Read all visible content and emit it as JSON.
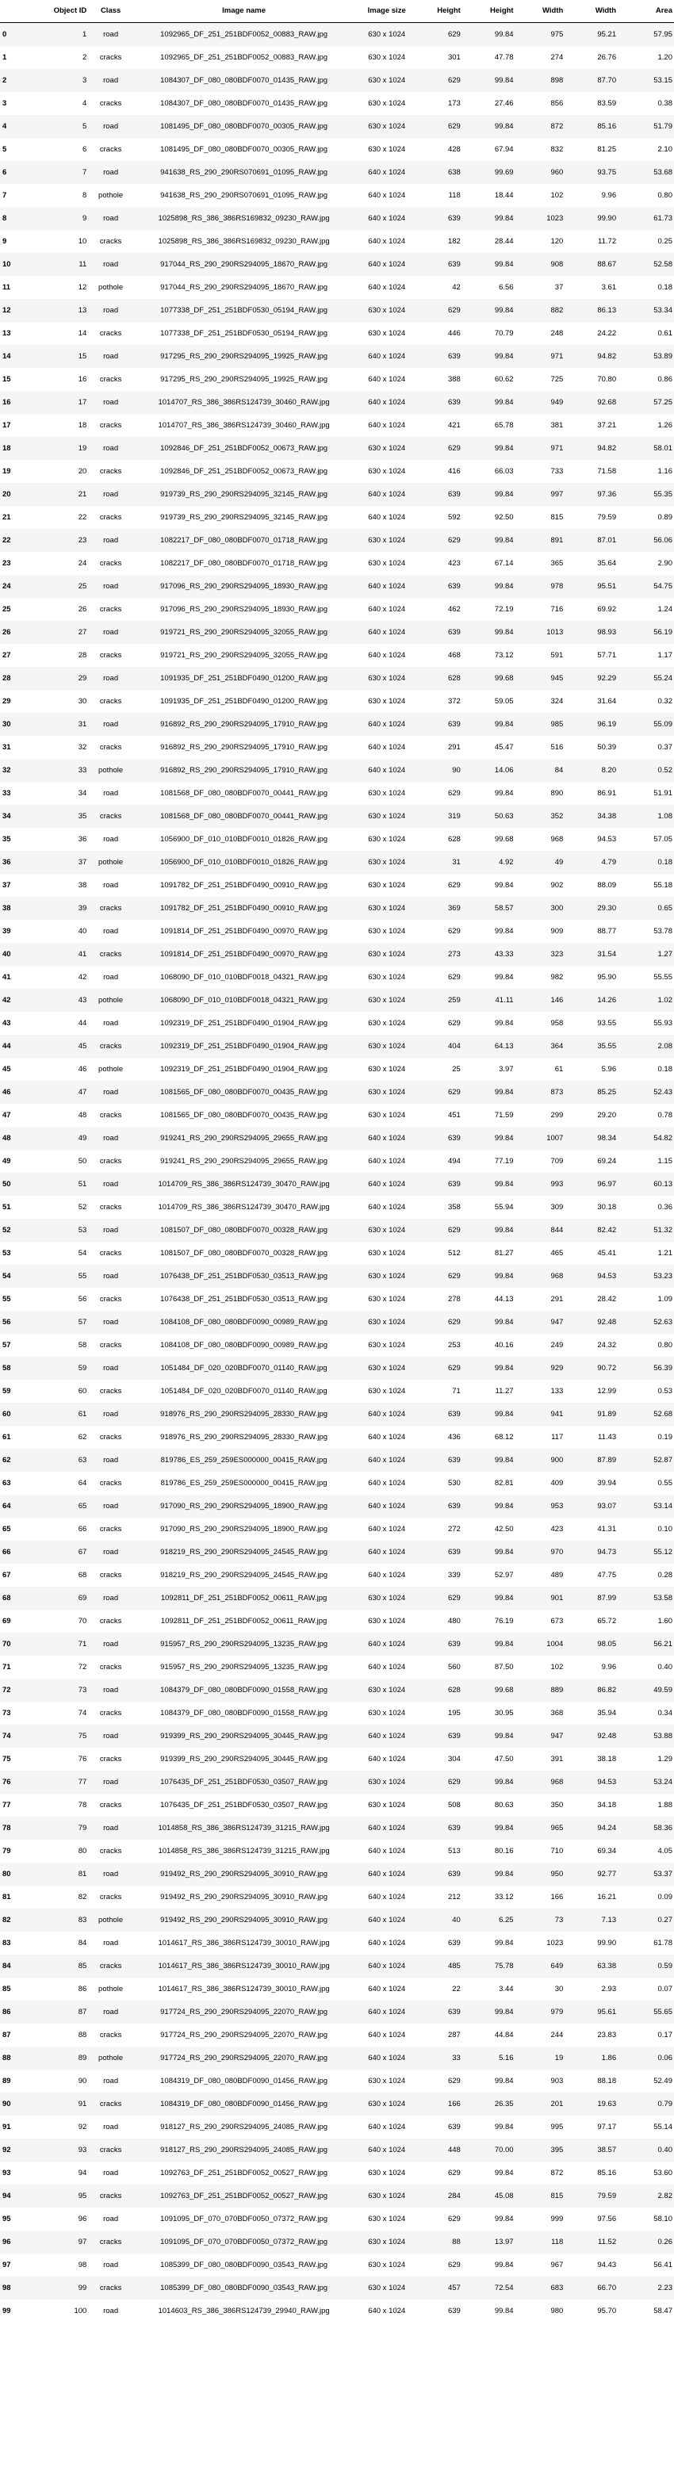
{
  "columns": [
    "",
    "Object ID",
    "Class",
    "Image name",
    "Image size",
    "Height",
    "Height",
    "Width",
    "Width",
    "Area"
  ],
  "rows": [
    [
      "0",
      "1",
      "road",
      "1092965_DF_251_251BDF0052_00883_RAW.jpg",
      "630 x 1024",
      "629",
      "99.84",
      "975",
      "95.21",
      "57.95"
    ],
    [
      "1",
      "2",
      "cracks",
      "1092965_DF_251_251BDF0052_00883_RAW.jpg",
      "630 x 1024",
      "301",
      "47.78",
      "274",
      "26.76",
      "1.20"
    ],
    [
      "2",
      "3",
      "road",
      "1084307_DF_080_080BDF0070_01435_RAW.jpg",
      "630 x 1024",
      "629",
      "99.84",
      "898",
      "87.70",
      "53.15"
    ],
    [
      "3",
      "4",
      "cracks",
      "1084307_DF_080_080BDF0070_01435_RAW.jpg",
      "630 x 1024",
      "173",
      "27.46",
      "856",
      "83.59",
      "0.38"
    ],
    [
      "4",
      "5",
      "road",
      "1081495_DF_080_080BDF0070_00305_RAW.jpg",
      "630 x 1024",
      "629",
      "99.84",
      "872",
      "85.16",
      "51.79"
    ],
    [
      "5",
      "6",
      "cracks",
      "1081495_DF_080_080BDF0070_00305_RAW.jpg",
      "630 x 1024",
      "428",
      "67.94",
      "832",
      "81.25",
      "2.10"
    ],
    [
      "6",
      "7",
      "road",
      "941638_RS_290_290RS070691_01095_RAW.jpg",
      "640 x 1024",
      "638",
      "99.69",
      "960",
      "93.75",
      "53.68"
    ],
    [
      "7",
      "8",
      "pothole",
      "941638_RS_290_290RS070691_01095_RAW.jpg",
      "640 x 1024",
      "118",
      "18.44",
      "102",
      "9.96",
      "0.80"
    ],
    [
      "8",
      "9",
      "road",
      "1025898_RS_386_386RS169832_09230_RAW.jpg",
      "640 x 1024",
      "639",
      "99.84",
      "1023",
      "99.90",
      "61.73"
    ],
    [
      "9",
      "10",
      "cracks",
      "1025898_RS_386_386RS169832_09230_RAW.jpg",
      "640 x 1024",
      "182",
      "28.44",
      "120",
      "11.72",
      "0.25"
    ],
    [
      "10",
      "11",
      "road",
      "917044_RS_290_290RS294095_18670_RAW.jpg",
      "640 x 1024",
      "639",
      "99.84",
      "908",
      "88.67",
      "52.58"
    ],
    [
      "11",
      "12",
      "pothole",
      "917044_RS_290_290RS294095_18670_RAW.jpg",
      "640 x 1024",
      "42",
      "6.56",
      "37",
      "3.61",
      "0.18"
    ],
    [
      "12",
      "13",
      "road",
      "1077338_DF_251_251BDF0530_05194_RAW.jpg",
      "630 x 1024",
      "629",
      "99.84",
      "882",
      "86.13",
      "53.34"
    ],
    [
      "13",
      "14",
      "cracks",
      "1077338_DF_251_251BDF0530_05194_RAW.jpg",
      "630 x 1024",
      "446",
      "70.79",
      "248",
      "24.22",
      "0.61"
    ],
    [
      "14",
      "15",
      "road",
      "917295_RS_290_290RS294095_19925_RAW.jpg",
      "640 x 1024",
      "639",
      "99.84",
      "971",
      "94.82",
      "53.89"
    ],
    [
      "15",
      "16",
      "cracks",
      "917295_RS_290_290RS294095_19925_RAW.jpg",
      "640 x 1024",
      "388",
      "60.62",
      "725",
      "70.80",
      "0.86"
    ],
    [
      "16",
      "17",
      "road",
      "1014707_RS_386_386RS124739_30460_RAW.jpg",
      "640 x 1024",
      "639",
      "99.84",
      "949",
      "92.68",
      "57.25"
    ],
    [
      "17",
      "18",
      "cracks",
      "1014707_RS_386_386RS124739_30460_RAW.jpg",
      "640 x 1024",
      "421",
      "65.78",
      "381",
      "37.21",
      "1.26"
    ],
    [
      "18",
      "19",
      "road",
      "1092846_DF_251_251BDF0052_00673_RAW.jpg",
      "630 x 1024",
      "629",
      "99.84",
      "971",
      "94.82",
      "58.01"
    ],
    [
      "19",
      "20",
      "cracks",
      "1092846_DF_251_251BDF0052_00673_RAW.jpg",
      "630 x 1024",
      "416",
      "66.03",
      "733",
      "71.58",
      "1.16"
    ],
    [
      "20",
      "21",
      "road",
      "919739_RS_290_290RS294095_32145_RAW.jpg",
      "640 x 1024",
      "639",
      "99.84",
      "997",
      "97.36",
      "55.35"
    ],
    [
      "21",
      "22",
      "cracks",
      "919739_RS_290_290RS294095_32145_RAW.jpg",
      "640 x 1024",
      "592",
      "92.50",
      "815",
      "79.59",
      "0.89"
    ],
    [
      "22",
      "23",
      "road",
      "1082217_DF_080_080BDF0070_01718_RAW.jpg",
      "630 x 1024",
      "629",
      "99.84",
      "891",
      "87.01",
      "56.06"
    ],
    [
      "23",
      "24",
      "cracks",
      "1082217_DF_080_080BDF0070_01718_RAW.jpg",
      "630 x 1024",
      "423",
      "67.14",
      "365",
      "35.64",
      "2.90"
    ],
    [
      "24",
      "25",
      "road",
      "917096_RS_290_290RS294095_18930_RAW.jpg",
      "640 x 1024",
      "639",
      "99.84",
      "978",
      "95.51",
      "54.75"
    ],
    [
      "25",
      "26",
      "cracks",
      "917096_RS_290_290RS294095_18930_RAW.jpg",
      "640 x 1024",
      "462",
      "72.19",
      "716",
      "69.92",
      "1.24"
    ],
    [
      "26",
      "27",
      "road",
      "919721_RS_290_290RS294095_32055_RAW.jpg",
      "640 x 1024",
      "639",
      "99.84",
      "1013",
      "98.93",
      "56.19"
    ],
    [
      "27",
      "28",
      "cracks",
      "919721_RS_290_290RS294095_32055_RAW.jpg",
      "640 x 1024",
      "468",
      "73.12",
      "591",
      "57.71",
      "1.17"
    ],
    [
      "28",
      "29",
      "road",
      "1091935_DF_251_251BDF0490_01200_RAW.jpg",
      "630 x 1024",
      "628",
      "99.68",
      "945",
      "92.29",
      "55.24"
    ],
    [
      "29",
      "30",
      "cracks",
      "1091935_DF_251_251BDF0490_01200_RAW.jpg",
      "630 x 1024",
      "372",
      "59.05",
      "324",
      "31.64",
      "0.32"
    ],
    [
      "30",
      "31",
      "road",
      "916892_RS_290_290RS294095_17910_RAW.jpg",
      "640 x 1024",
      "639",
      "99.84",
      "985",
      "96.19",
      "55.09"
    ],
    [
      "31",
      "32",
      "cracks",
      "916892_RS_290_290RS294095_17910_RAW.jpg",
      "640 x 1024",
      "291",
      "45.47",
      "516",
      "50.39",
      "0.37"
    ],
    [
      "32",
      "33",
      "pothole",
      "916892_RS_290_290RS294095_17910_RAW.jpg",
      "640 x 1024",
      "90",
      "14.06",
      "84",
      "8.20",
      "0.52"
    ],
    [
      "33",
      "34",
      "road",
      "1081568_DF_080_080BDF0070_00441_RAW.jpg",
      "630 x 1024",
      "629",
      "99.84",
      "890",
      "86.91",
      "51.91"
    ],
    [
      "34",
      "35",
      "cracks",
      "1081568_DF_080_080BDF0070_00441_RAW.jpg",
      "630 x 1024",
      "319",
      "50.63",
      "352",
      "34.38",
      "1.08"
    ],
    [
      "35",
      "36",
      "road",
      "1056900_DF_010_010BDF0010_01826_RAW.jpg",
      "630 x 1024",
      "628",
      "99.68",
      "968",
      "94.53",
      "57.05"
    ],
    [
      "36",
      "37",
      "pothole",
      "1056900_DF_010_010BDF0010_01826_RAW.jpg",
      "630 x 1024",
      "31",
      "4.92",
      "49",
      "4.79",
      "0.18"
    ],
    [
      "37",
      "38",
      "road",
      "1091782_DF_251_251BDF0490_00910_RAW.jpg",
      "630 x 1024",
      "629",
      "99.84",
      "902",
      "88.09",
      "55.18"
    ],
    [
      "38",
      "39",
      "cracks",
      "1091782_DF_251_251BDF0490_00910_RAW.jpg",
      "630 x 1024",
      "369",
      "58.57",
      "300",
      "29.30",
      "0.65"
    ],
    [
      "39",
      "40",
      "road",
      "1091814_DF_251_251BDF0490_00970_RAW.jpg",
      "630 x 1024",
      "629",
      "99.84",
      "909",
      "88.77",
      "53.78"
    ],
    [
      "40",
      "41",
      "cracks",
      "1091814_DF_251_251BDF0490_00970_RAW.jpg",
      "630 x 1024",
      "273",
      "43.33",
      "323",
      "31.54",
      "1.27"
    ],
    [
      "41",
      "42",
      "road",
      "1068090_DF_010_010BDF0018_04321_RAW.jpg",
      "630 x 1024",
      "629",
      "99.84",
      "982",
      "95.90",
      "55.55"
    ],
    [
      "42",
      "43",
      "pothole",
      "1068090_DF_010_010BDF0018_04321_RAW.jpg",
      "630 x 1024",
      "259",
      "41.11",
      "146",
      "14.26",
      "1.02"
    ],
    [
      "43",
      "44",
      "road",
      "1092319_DF_251_251BDF0490_01904_RAW.jpg",
      "630 x 1024",
      "629",
      "99.84",
      "958",
      "93.55",
      "55.93"
    ],
    [
      "44",
      "45",
      "cracks",
      "1092319_DF_251_251BDF0490_01904_RAW.jpg",
      "630 x 1024",
      "404",
      "64.13",
      "364",
      "35.55",
      "2.08"
    ],
    [
      "45",
      "46",
      "pothole",
      "1092319_DF_251_251BDF0490_01904_RAW.jpg",
      "630 x 1024",
      "25",
      "3.97",
      "61",
      "5.96",
      "0.18"
    ],
    [
      "46",
      "47",
      "road",
      "1081565_DF_080_080BDF0070_00435_RAW.jpg",
      "630 x 1024",
      "629",
      "99.84",
      "873",
      "85.25",
      "52.43"
    ],
    [
      "47",
      "48",
      "cracks",
      "1081565_DF_080_080BDF0070_00435_RAW.jpg",
      "630 x 1024",
      "451",
      "71.59",
      "299",
      "29.20",
      "0.78"
    ],
    [
      "48",
      "49",
      "road",
      "919241_RS_290_290RS294095_29655_RAW.jpg",
      "640 x 1024",
      "639",
      "99.84",
      "1007",
      "98.34",
      "54.82"
    ],
    [
      "49",
      "50",
      "cracks",
      "919241_RS_290_290RS294095_29655_RAW.jpg",
      "640 x 1024",
      "494",
      "77.19",
      "709",
      "69.24",
      "1.15"
    ],
    [
      "50",
      "51",
      "road",
      "1014709_RS_386_386RS124739_30470_RAW.jpg",
      "640 x 1024",
      "639",
      "99.84",
      "993",
      "96.97",
      "60.13"
    ],
    [
      "51",
      "52",
      "cracks",
      "1014709_RS_386_386RS124739_30470_RAW.jpg",
      "640 x 1024",
      "358",
      "55.94",
      "309",
      "30.18",
      "0.36"
    ],
    [
      "52",
      "53",
      "road",
      "1081507_DF_080_080BDF0070_00328_RAW.jpg",
      "630 x 1024",
      "629",
      "99.84",
      "844",
      "82.42",
      "51.32"
    ],
    [
      "53",
      "54",
      "cracks",
      "1081507_DF_080_080BDF0070_00328_RAW.jpg",
      "630 x 1024",
      "512",
      "81.27",
      "465",
      "45.41",
      "1.21"
    ],
    [
      "54",
      "55",
      "road",
      "1076438_DF_251_251BDF0530_03513_RAW.jpg",
      "630 x 1024",
      "629",
      "99.84",
      "968",
      "94.53",
      "53.23"
    ],
    [
      "55",
      "56",
      "cracks",
      "1076438_DF_251_251BDF0530_03513_RAW.jpg",
      "630 x 1024",
      "278",
      "44.13",
      "291",
      "28.42",
      "1.09"
    ],
    [
      "56",
      "57",
      "road",
      "1084108_DF_080_080BDF0090_00989_RAW.jpg",
      "630 x 1024",
      "629",
      "99.84",
      "947",
      "92.48",
      "52.63"
    ],
    [
      "57",
      "58",
      "cracks",
      "1084108_DF_080_080BDF0090_00989_RAW.jpg",
      "630 x 1024",
      "253",
      "40.16",
      "249",
      "24.32",
      "0.80"
    ],
    [
      "58",
      "59",
      "road",
      "1051484_DF_020_020BDF0070_01140_RAW.jpg",
      "630 x 1024",
      "629",
      "99.84",
      "929",
      "90.72",
      "56.39"
    ],
    [
      "59",
      "60",
      "cracks",
      "1051484_DF_020_020BDF0070_01140_RAW.jpg",
      "630 x 1024",
      "71",
      "11.27",
      "133",
      "12.99",
      "0.53"
    ],
    [
      "60",
      "61",
      "road",
      "918976_RS_290_290RS294095_28330_RAW.jpg",
      "640 x 1024",
      "639",
      "99.84",
      "941",
      "91.89",
      "52.68"
    ],
    [
      "61",
      "62",
      "cracks",
      "918976_RS_290_290RS294095_28330_RAW.jpg",
      "640 x 1024",
      "436",
      "68.12",
      "117",
      "11.43",
      "0.19"
    ],
    [
      "62",
      "63",
      "road",
      "819786_ES_259_259ES000000_00415_RAW.jpg",
      "640 x 1024",
      "639",
      "99.84",
      "900",
      "87.89",
      "52.87"
    ],
    [
      "63",
      "64",
      "cracks",
      "819786_ES_259_259ES000000_00415_RAW.jpg",
      "640 x 1024",
      "530",
      "82.81",
      "409",
      "39.94",
      "0.55"
    ],
    [
      "64",
      "65",
      "road",
      "917090_RS_290_290RS294095_18900_RAW.jpg",
      "640 x 1024",
      "639",
      "99.84",
      "953",
      "93.07",
      "53.14"
    ],
    [
      "65",
      "66",
      "cracks",
      "917090_RS_290_290RS294095_18900_RAW.jpg",
      "640 x 1024",
      "272",
      "42.50",
      "423",
      "41.31",
      "0.10"
    ],
    [
      "66",
      "67",
      "road",
      "918219_RS_290_290RS294095_24545_RAW.jpg",
      "640 x 1024",
      "639",
      "99.84",
      "970",
      "94.73",
      "55.12"
    ],
    [
      "67",
      "68",
      "cracks",
      "918219_RS_290_290RS294095_24545_RAW.jpg",
      "640 x 1024",
      "339",
      "52.97",
      "489",
      "47.75",
      "0.28"
    ],
    [
      "68",
      "69",
      "road",
      "1092811_DF_251_251BDF0052_00611_RAW.jpg",
      "630 x 1024",
      "629",
      "99.84",
      "901",
      "87.99",
      "53.58"
    ],
    [
      "69",
      "70",
      "cracks",
      "1092811_DF_251_251BDF0052_00611_RAW.jpg",
      "630 x 1024",
      "480",
      "76.19",
      "673",
      "65.72",
      "1.60"
    ],
    [
      "70",
      "71",
      "road",
      "915957_RS_290_290RS294095_13235_RAW.jpg",
      "640 x 1024",
      "639",
      "99.84",
      "1004",
      "98.05",
      "56.21"
    ],
    [
      "71",
      "72",
      "cracks",
      "915957_RS_290_290RS294095_13235_RAW.jpg",
      "640 x 1024",
      "560",
      "87.50",
      "102",
      "9.96",
      "0.40"
    ],
    [
      "72",
      "73",
      "road",
      "1084379_DF_080_080BDF0090_01558_RAW.jpg",
      "630 x 1024",
      "628",
      "99.68",
      "889",
      "86.82",
      "49.59"
    ],
    [
      "73",
      "74",
      "cracks",
      "1084379_DF_080_080BDF0090_01558_RAW.jpg",
      "630 x 1024",
      "195",
      "30.95",
      "368",
      "35.94",
      "0.34"
    ],
    [
      "74",
      "75",
      "road",
      "919399_RS_290_290RS294095_30445_RAW.jpg",
      "640 x 1024",
      "639",
      "99.84",
      "947",
      "92.48",
      "53.88"
    ],
    [
      "75",
      "76",
      "cracks",
      "919399_RS_290_290RS294095_30445_RAW.jpg",
      "640 x 1024",
      "304",
      "47.50",
      "391",
      "38.18",
      "1.29"
    ],
    [
      "76",
      "77",
      "road",
      "1076435_DF_251_251BDF0530_03507_RAW.jpg",
      "630 x 1024",
      "629",
      "99.84",
      "968",
      "94.53",
      "53.24"
    ],
    [
      "77",
      "78",
      "cracks",
      "1076435_DF_251_251BDF0530_03507_RAW.jpg",
      "630 x 1024",
      "508",
      "80.63",
      "350",
      "34.18",
      "1.88"
    ],
    [
      "78",
      "79",
      "road",
      "1014858_RS_386_386RS124739_31215_RAW.jpg",
      "640 x 1024",
      "639",
      "99.84",
      "965",
      "94.24",
      "58.36"
    ],
    [
      "79",
      "80",
      "cracks",
      "1014858_RS_386_386RS124739_31215_RAW.jpg",
      "640 x 1024",
      "513",
      "80.16",
      "710",
      "69.34",
      "4.05"
    ],
    [
      "80",
      "81",
      "road",
      "919492_RS_290_290RS294095_30910_RAW.jpg",
      "640 x 1024",
      "639",
      "99.84",
      "950",
      "92.77",
      "53.37"
    ],
    [
      "81",
      "82",
      "cracks",
      "919492_RS_290_290RS294095_30910_RAW.jpg",
      "640 x 1024",
      "212",
      "33.12",
      "166",
      "16.21",
      "0.09"
    ],
    [
      "82",
      "83",
      "pothole",
      "919492_RS_290_290RS294095_30910_RAW.jpg",
      "640 x 1024",
      "40",
      "6.25",
      "73",
      "7.13",
      "0.27"
    ],
    [
      "83",
      "84",
      "road",
      "1014617_RS_386_386RS124739_30010_RAW.jpg",
      "640 x 1024",
      "639",
      "99.84",
      "1023",
      "99.90",
      "61.78"
    ],
    [
      "84",
      "85",
      "cracks",
      "1014617_RS_386_386RS124739_30010_RAW.jpg",
      "640 x 1024",
      "485",
      "75.78",
      "649",
      "63.38",
      "0.59"
    ],
    [
      "85",
      "86",
      "pothole",
      "1014617_RS_386_386RS124739_30010_RAW.jpg",
      "640 x 1024",
      "22",
      "3.44",
      "30",
      "2.93",
      "0.07"
    ],
    [
      "86",
      "87",
      "road",
      "917724_RS_290_290RS294095_22070_RAW.jpg",
      "640 x 1024",
      "639",
      "99.84",
      "979",
      "95.61",
      "55.65"
    ],
    [
      "87",
      "88",
      "cracks",
      "917724_RS_290_290RS294095_22070_RAW.jpg",
      "640 x 1024",
      "287",
      "44.84",
      "244",
      "23.83",
      "0.17"
    ],
    [
      "88",
      "89",
      "pothole",
      "917724_RS_290_290RS294095_22070_RAW.jpg",
      "640 x 1024",
      "33",
      "5.16",
      "19",
      "1.86",
      "0.06"
    ],
    [
      "89",
      "90",
      "road",
      "1084319_DF_080_080BDF0090_01456_RAW.jpg",
      "630 x 1024",
      "629",
      "99.84",
      "903",
      "88.18",
      "52.49"
    ],
    [
      "90",
      "91",
      "cracks",
      "1084319_DF_080_080BDF0090_01456_RAW.jpg",
      "630 x 1024",
      "166",
      "26.35",
      "201",
      "19.63",
      "0.79"
    ],
    [
      "91",
      "92",
      "road",
      "918127_RS_290_290RS294095_24085_RAW.jpg",
      "640 x 1024",
      "639",
      "99.84",
      "995",
      "97.17",
      "55.14"
    ],
    [
      "92",
      "93",
      "cracks",
      "918127_RS_290_290RS294095_24085_RAW.jpg",
      "640 x 1024",
      "448",
      "70.00",
      "395",
      "38.57",
      "0.40"
    ],
    [
      "93",
      "94",
      "road",
      "1092763_DF_251_251BDF0052_00527_RAW.jpg",
      "630 x 1024",
      "629",
      "99.84",
      "872",
      "85.16",
      "53.60"
    ],
    [
      "94",
      "95",
      "cracks",
      "1092763_DF_251_251BDF0052_00527_RAW.jpg",
      "630 x 1024",
      "284",
      "45.08",
      "815",
      "79.59",
      "2.82"
    ],
    [
      "95",
      "96",
      "road",
      "1091095_DF_070_070BDF0050_07372_RAW.jpg",
      "630 x 1024",
      "629",
      "99.84",
      "999",
      "97.56",
      "58.10"
    ],
    [
      "96",
      "97",
      "cracks",
      "1091095_DF_070_070BDF0050_07372_RAW.jpg",
      "630 x 1024",
      "88",
      "13.97",
      "118",
      "11.52",
      "0.26"
    ],
    [
      "97",
      "98",
      "road",
      "1085399_DF_080_080BDF0090_03543_RAW.jpg",
      "630 x 1024",
      "629",
      "99.84",
      "967",
      "94.43",
      "56.41"
    ],
    [
      "98",
      "99",
      "cracks",
      "1085399_DF_080_080BDF0090_03543_RAW.jpg",
      "630 x 1024",
      "457",
      "72.54",
      "683",
      "66.70",
      "2.23"
    ],
    [
      "99",
      "100",
      "road",
      "1014603_RS_386_386RS124739_29940_RAW.jpg",
      "640 x 1024",
      "639",
      "99.84",
      "980",
      "95.70",
      "58.47"
    ]
  ]
}
